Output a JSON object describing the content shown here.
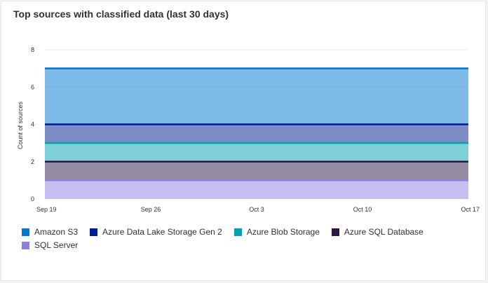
{
  "card": {
    "title": "Top sources with classified data (last 30 days)"
  },
  "chart_data": {
    "type": "area",
    "stacked": true,
    "title": "Top sources with classified data (last 30 days)",
    "xlabel": "",
    "ylabel": "Count of sources",
    "xlim": [
      "Sep 19",
      "Oct 17"
    ],
    "ylim": [
      0,
      8
    ],
    "yticks": [
      0,
      2,
      4,
      6,
      8
    ],
    "xticks": [
      "Sep 19",
      "Sep 26",
      "Oct 3",
      "Oct 10",
      "Oct 17"
    ],
    "grid": true,
    "legend_position": "bottom",
    "series": [
      {
        "name": "Amazon S3",
        "color": "#0078d4",
        "values": [
          3,
          3,
          3,
          3,
          3
        ]
      },
      {
        "name": "Azure Data Lake Storage Gen 2",
        "color": "#001c8f",
        "values": [
          1,
          1,
          1,
          1,
          1
        ]
      },
      {
        "name": "Azure Blob Storage",
        "color": "#00a2ad",
        "values": [
          1,
          1,
          1,
          1,
          1
        ]
      },
      {
        "name": "Azure SQL Database",
        "color": "#2b1746",
        "values": [
          1,
          1,
          1,
          1,
          1
        ]
      },
      {
        "name": "SQL Server",
        "color": "#8e7ee0",
        "values": [
          1,
          1,
          1,
          1,
          1
        ]
      }
    ]
  }
}
